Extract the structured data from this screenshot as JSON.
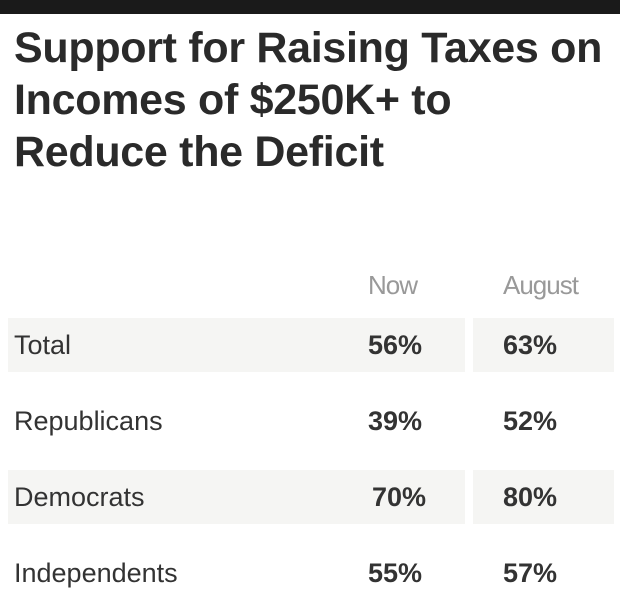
{
  "chart_data": {
    "type": "table",
    "title": "Support for Raising Taxes on Incomes of $250K+ to Reduce the Deficit",
    "columns": [
      "Now",
      "August"
    ],
    "rows": [
      {
        "label": "Total",
        "values": [
          "56%",
          "63%"
        ]
      },
      {
        "label": "Republicans",
        "values": [
          "39%",
          "52%"
        ]
      },
      {
        "label": "Democrats",
        "values": [
          "70%",
          "80%"
        ]
      },
      {
        "label": "Independents",
        "values": [
          "55%",
          "57%"
        ]
      }
    ],
    "colors": {
      "top_bar": "#1a1a1a",
      "row_shade": "#f5f5f3",
      "header_text": "#999999"
    }
  }
}
